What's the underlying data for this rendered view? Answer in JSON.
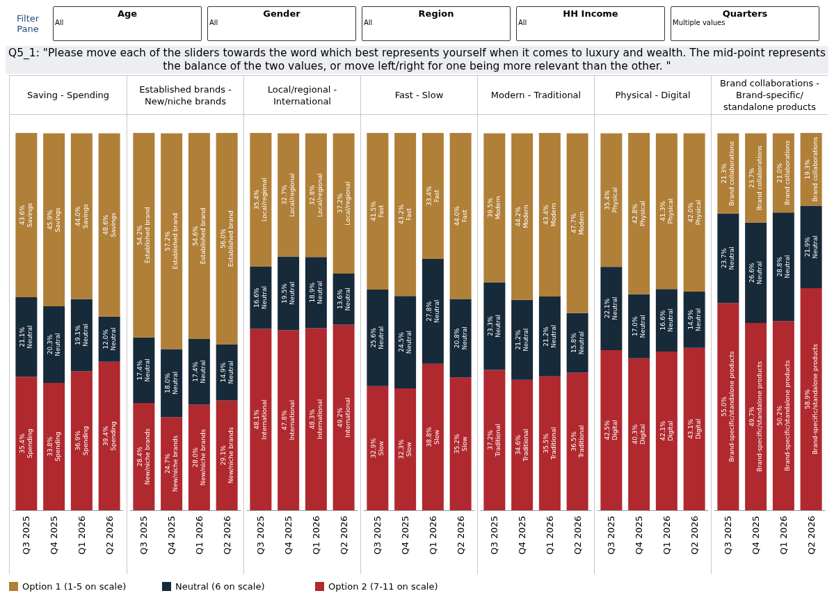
{
  "chart_data": [
    {
      "type": "other",
      "title": "Filter Pane",
      "subtitle": "Q5_1: \"Please move each of the sliders towards the word which best represents yourself when it comes to luxury and wealth. The mid-point represents the balance of the two values, or move left/right for one being more relevant than the other. \"",
      "annotations": [
        "Age",
        "All",
        "Gender",
        "All",
        "Region",
        "All",
        "HH Income",
        "All",
        "Quarters",
        "Multiple values"
      ]
    },
    {
      "type": "bar",
      "title": "Saving - Spending",
      "stacked": true,
      "tick_labels": "x",
      "legend": "bottom",
      "categories": [
        "Q3 2025",
        "Q4 2025",
        "Q1 2026",
        "Q2 2026"
      ],
      "series": [
        {
          "name": "Option 2 (7-11 on scale)",
          "color": "#b0292f",
          "values": [
            35.4,
            33.8,
            36.9,
            39.4
          ],
          "value_labels": [
            "35.4%\nSpending",
            "33.8%\nSpending",
            "36.9%\nSpending",
            "39.4%\nSpending"
          ]
        },
        {
          "name": "Neutral (6 on scale)",
          "color": "#172a3a",
          "values": [
            21.1,
            20.3,
            19.1,
            12.0
          ],
          "value_labels": [
            "21.1%\nNeutral",
            "20.3%\nNeutral",
            "19.1%\nNeutral",
            "12.0%\nNeutral"
          ]
        },
        {
          "name": "Option 1 (1-5 on scale)",
          "color": "#b07f38",
          "values": [
            43.6,
            45.9,
            44.0,
            48.6
          ],
          "value_labels": [
            "43.6%\nSavings",
            "45.9%\nSavings",
            "44.0%\nSavings",
            "48.6%\nSavings"
          ]
        }
      ]
    },
    {
      "type": "bar",
      "title": "Established brands - New/niche brands",
      "stacked": true,
      "tick_labels": "x",
      "categories": [
        "Q3 2025",
        "Q4 2025",
        "Q1 2026",
        "Q2 2026"
      ],
      "series": [
        {
          "color": "#b0292f",
          "values": [
            28.4,
            24.7,
            28.0,
            29.1
          ],
          "value_labels": [
            "28.4%\nNew/niche brands",
            "24.7%\nNew/niche brands",
            "28.0%\nNew/niche brands",
            "29.1%\nNew/niche brands"
          ]
        },
        {
          "color": "#172a3a",
          "values": [
            17.4,
            18.0,
            17.4,
            14.9
          ],
          "value_labels": [
            "17.4%\nNeutral",
            "18.0%\nNeutral",
            "17.4%\nNeutral",
            "14.9%\nNeutral"
          ]
        },
        {
          "color": "#b07f38",
          "values": [
            54.2,
            57.2,
            54.6,
            56.0
          ],
          "value_labels": [
            "54.2%\nEstablished brand",
            "57.2%\nEstablished brand",
            "54.6%\nEstablished brand",
            "56.0%\nEstablished brand"
          ]
        }
      ]
    },
    {
      "type": "bar",
      "title": "Local/regional - International",
      "stacked": true,
      "tick_labels": "x",
      "categories": [
        "Q3 2025",
        "Q4 2025",
        "Q1 2026",
        "Q2 2026"
      ],
      "series": [
        {
          "color": "#b0292f",
          "values": [
            48.1,
            47.8,
            48.3,
            49.2
          ],
          "value_labels": [
            "48.1%\nInternational",
            "47.8%\nInternational",
            "48.3%\nInternational",
            "49.2%\nInternational"
          ]
        },
        {
          "color": "#172a3a",
          "values": [
            16.6,
            19.5,
            18.9,
            13.6
          ],
          "value_labels": [
            "16.6%\nNeutral",
            "19.5%\nNeutral",
            "18.9%\nNeutral",
            "13.6%\nNeutral"
          ]
        },
        {
          "color": "#b07f38",
          "values": [
            35.4,
            32.7,
            32.8,
            37.2
          ],
          "value_labels": [
            "35.4%\nLocal/regional",
            "32.7%\nLocal/regional",
            "32.8%\nLocal/regional",
            "37.2%\nLocal/regional"
          ]
        }
      ]
    },
    {
      "type": "bar",
      "title": "Fast - Slow",
      "stacked": true,
      "tick_labels": "x",
      "categories": [
        "Q3 2025",
        "Q4 2025",
        "Q1 2026",
        "Q2 2026"
      ],
      "series": [
        {
          "color": "#b0292f",
          "values": [
            32.9,
            32.3,
            38.8,
            35.2
          ],
          "value_labels": [
            "32.9%\nSlow",
            "32.3%\nSlow",
            "38.8%\nSlow",
            "35.2%\nSlow"
          ]
        },
        {
          "color": "#172a3a",
          "values": [
            25.6,
            24.5,
            27.8,
            20.8
          ],
          "value_labels": [
            "25.6%\nNeutral",
            "24.5%\nNeutral",
            "27.8%\nNeutral",
            "20.8%\nNeutral"
          ]
        },
        {
          "color": "#b07f38",
          "values": [
            41.5,
            43.2,
            33.4,
            44.0
          ],
          "value_labels": [
            "41.5%\nFast",
            "43.2%\nFast",
            "33.4%\nFast",
            "44.0%\nFast"
          ]
        }
      ]
    },
    {
      "type": "bar",
      "title": "Modern - Traditional",
      "stacked": true,
      "tick_labels": "x",
      "categories": [
        "Q3 2025",
        "Q4 2025",
        "Q1 2026",
        "Q2 2026"
      ],
      "series": [
        {
          "color": "#b0292f",
          "values": [
            37.2,
            34.6,
            35.5,
            36.5
          ],
          "value_labels": [
            "37.2%\nTraditional",
            "34.6%\nTraditional",
            "35.5%\nTraditional",
            "36.5%\nTraditional"
          ]
        },
        {
          "color": "#172a3a",
          "values": [
            23.3,
            21.2,
            21.2,
            15.8
          ],
          "value_labels": [
            "23.3%\nNeutral",
            "21.2%\nNeutral",
            "21.2%\nNeutral",
            "15.8%\nNeutral"
          ]
        },
        {
          "color": "#b07f38",
          "values": [
            39.5,
            44.2,
            43.4,
            47.7
          ],
          "value_labels": [
            "39.5%\nModern",
            "44.2%\nModern",
            "43.4%\nModern",
            "47.7%\nModern"
          ]
        }
      ]
    },
    {
      "type": "bar",
      "title": "Physical - Digital",
      "stacked": true,
      "tick_labels": "x",
      "categories": [
        "Q3 2025",
        "Q4 2025",
        "Q1 2026",
        "Q2 2026"
      ],
      "series": [
        {
          "color": "#b0292f",
          "values": [
            42.5,
            40.3,
            42.1,
            43.1
          ],
          "value_labels": [
            "42.5%\nDigital",
            "40.3%\nDigital",
            "42.1%\nDigital",
            "43.1%\nDigital"
          ]
        },
        {
          "color": "#172a3a",
          "values": [
            22.1,
            17.0,
            16.6,
            14.9
          ],
          "value_labels": [
            "22.1%\nNeutral",
            "17.0%\nNeutral",
            "16.6%\nNeutral",
            "14.9%\nNeutral"
          ]
        },
        {
          "color": "#b07f38",
          "values": [
            35.4,
            42.8,
            41.3,
            42.0
          ],
          "value_labels": [
            "35.4%\nPhysical",
            "42.8%\nPhysical",
            "41.3%\nPhysical",
            "42.0%\nPhysical"
          ]
        }
      ]
    },
    {
      "type": "bar",
      "title": "Brand collaborations - Brand-specific/standalone products",
      "stacked": true,
      "tick_labels": "x",
      "categories": [
        "Q3 2025",
        "Q4 2025",
        "Q1 2026",
        "Q2 2026"
      ],
      "series": [
        {
          "color": "#b0292f",
          "values": [
            55.0,
            49.7,
            50.2,
            58.9
          ],
          "value_labels": [
            "55.0%\nBrand-specific/standalone products",
            "49.7%\nBrand-specific/standalone products",
            "50.2%\nBrand-specific/standalone products",
            "58.9%\nBrand-specific/standalone products"
          ]
        },
        {
          "color": "#172a3a",
          "values": [
            23.7,
            26.6,
            28.8,
            21.9
          ],
          "value_labels": [
            "23.7%\nNeutral",
            "26.6%\nNeutral",
            "28.8%\nNeutral",
            "21.9%\nNeutral"
          ]
        },
        {
          "color": "#b07f38",
          "values": [
            21.3,
            23.7,
            21.0,
            19.3
          ],
          "value_labels": [
            "21.3%\nBrand collaborations",
            "23.7%\nBrand collaborations",
            "21.0%\nBrand collaborations",
            "19.3%\nBrand collaborations"
          ]
        }
      ]
    }
  ]
}
